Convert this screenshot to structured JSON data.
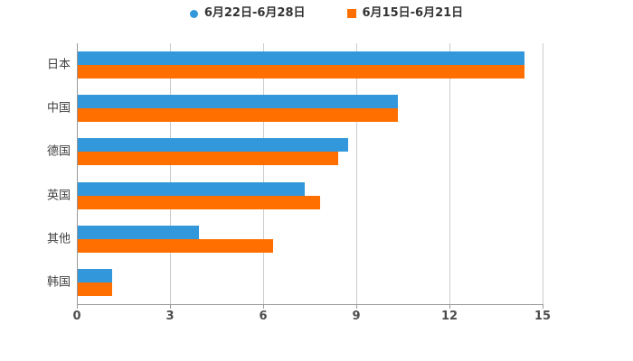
{
  "legend": {
    "items": [
      {
        "label": "6月22日-6月28日",
        "color": "#3398DB",
        "marker": "circle"
      },
      {
        "label": "6月15日-6月21日",
        "color": "#FF6F00",
        "marker": "square"
      }
    ]
  },
  "chart_data": {
    "type": "bar",
    "orientation": "horizontal",
    "title": "",
    "xlabel": "",
    "ylabel": "",
    "categories": [
      "日本",
      "中国",
      "德国",
      "英国",
      "其他",
      "韩国"
    ],
    "series": [
      {
        "name": "6月22日-6月28日",
        "color": "#3398DB",
        "values": [
          14.4,
          10.3,
          8.7,
          7.3,
          3.9,
          1.1
        ]
      },
      {
        "name": "6月15日-6月21日",
        "color": "#FF6F00",
        "values": [
          14.4,
          10.3,
          8.4,
          7.8,
          6.3,
          1.1
        ]
      }
    ],
    "xlim": [
      0,
      15
    ],
    "xticks": [
      0,
      3,
      6,
      9,
      12,
      15
    ],
    "grid": true,
    "legend_position": "top"
  },
  "colors": {
    "background": "#FFFFFF",
    "grid_line": "#CCCCCC",
    "axis_line": "#999999",
    "tick_label": "#4D4D4D",
    "category_label": "#404040",
    "legend_text": "#333333"
  }
}
